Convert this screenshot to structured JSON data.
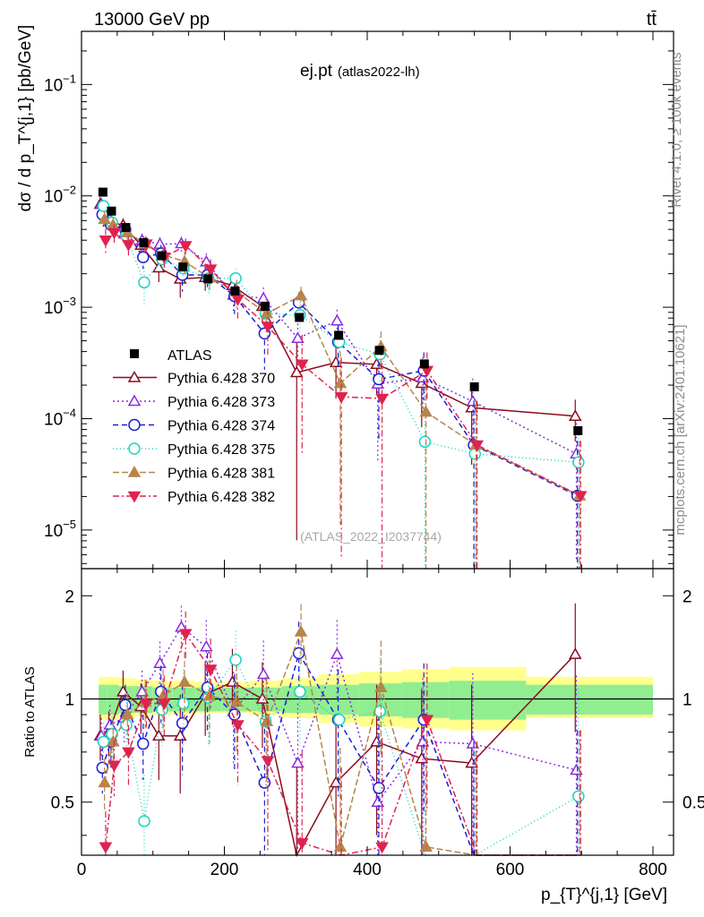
{
  "header": {
    "energy_label": "13000 GeV pp",
    "process_label": "tt̄",
    "plot_title": "ej.pt",
    "plot_tag": "(atlas2022-lh)",
    "rivet_label": "Rivet 4.1.0, ≥ 100k events",
    "mcplots_label": "mcplots.cern.ch [arXiv:2401.10621]",
    "analysis_watermark": "(ATLAS_2022_I2037744)"
  },
  "axes": {
    "ylabel_main": "dσ / d p_T^{j,1} [pb/GeV]",
    "ylabel_ratio": "Ratio to ATLAS",
    "xlabel": "p_{T}^{j,1} [GeV]",
    "x_ticks": [
      "0",
      "200",
      "400",
      "600",
      "800"
    ],
    "y_main_ticks": [
      "10^{-1}",
      "10^{-2}",
      "10^{-3}",
      "10^{-4}",
      "10^{-5}"
    ],
    "y_ratio_ticks": [
      "0.5",
      "1",
      "2"
    ]
  },
  "colors": {
    "data": "#000000",
    "s370": "#8b0a1c",
    "s373": "#8a2be2",
    "s374": "#1c1cd6",
    "s375": "#19d4c4",
    "s381": "#b8844a",
    "s382": "#e0224e",
    "band_inner": "#90ee90",
    "band_outer": "#ffff8c"
  },
  "chart_data": {
    "type": "scatter",
    "title": "ej.pt (atlas2022-lh)",
    "xlabel": "p_T^{j,1} [GeV]",
    "ylabel": "dσ / d p_T^{j,1} [pb/GeV]",
    "xlim": [
      0,
      800
    ],
    "ylim_main": [
      4.5e-06,
      0.3
    ],
    "ylim_ratio": [
      0.35,
      2.4
    ],
    "yscale": "log",
    "legend_position": "center-left",
    "x": [
      30,
      42,
      62,
      87,
      112,
      142,
      177,
      215,
      257,
      305,
      360,
      417,
      480,
      550,
      695
    ],
    "data": {
      "name": "ATLAS",
      "values": [
        0.0108,
        0.0073,
        0.0052,
        0.0038,
        0.0029,
        0.0023,
        0.0018,
        0.0014,
        0.00102,
        0.00081,
        0.00056,
        0.00041,
        0.00031,
        0.000193,
        7.8e-05
      ],
      "band_inner": [
        [
          0.9,
          1.1
        ],
        [
          0.9,
          1.1
        ],
        [
          0.91,
          1.09
        ],
        [
          0.91,
          1.09
        ],
        [
          0.92,
          1.08
        ],
        [
          0.92,
          1.08
        ],
        [
          0.92,
          1.08
        ],
        [
          0.92,
          1.08
        ],
        [
          0.92,
          1.08
        ],
        [
          0.91,
          1.09
        ],
        [
          0.9,
          1.1
        ],
        [
          0.89,
          1.11
        ],
        [
          0.88,
          1.12
        ],
        [
          0.87,
          1.13
        ],
        [
          0.9,
          1.1
        ]
      ],
      "band_outer": [
        [
          0.87,
          1.16
        ],
        [
          0.87,
          1.16
        ],
        [
          0.88,
          1.15
        ],
        [
          0.89,
          1.14
        ],
        [
          0.9,
          1.13
        ],
        [
          0.9,
          1.13
        ],
        [
          0.91,
          1.12
        ],
        [
          0.91,
          1.12
        ],
        [
          0.9,
          1.13
        ],
        [
          0.88,
          1.15
        ],
        [
          0.85,
          1.18
        ],
        [
          0.83,
          1.2
        ],
        [
          0.82,
          1.22
        ],
        [
          0.81,
          1.24
        ],
        [
          0.88,
          1.16
        ]
      ]
    },
    "series": [
      {
        "name": "Pythia 6.428 370",
        "key": "s370",
        "marker": "triangle-up-open",
        "dash": "",
        "ratio": [
          0.78,
          0.8,
          1.05,
          0.95,
          0.78,
          0.78,
          1.03,
          1.12,
          1.0,
          0.32,
          0.57,
          0.75,
          0.67,
          0.65,
          1.35
        ],
        "err": [
          0.12,
          0.12,
          0.16,
          0.16,
          0.2,
          0.25,
          0.25,
          0.28,
          0.28,
          0.32,
          0.3,
          0.35,
          0.4,
          0.45,
          0.55
        ]
      },
      {
        "name": "Pythia 6.428 373",
        "key": "s373",
        "marker": "triangle-up-open",
        "dash": "2,3",
        "ratio": [
          0.78,
          0.84,
          0.88,
          1.05,
          1.27,
          1.62,
          1.42,
          0.92,
          1.18,
          0.65,
          1.35,
          0.5,
          0.75,
          0.74,
          0.62
        ],
        "err": [
          0.1,
          0.12,
          0.14,
          0.16,
          0.2,
          0.25,
          0.28,
          0.28,
          0.3,
          0.32,
          0.35,
          0.4,
          0.4,
          0.45,
          0.55
        ]
      },
      {
        "name": "Pythia 6.428 374",
        "key": "s374",
        "marker": "circle-open",
        "dash": "6,4",
        "ratio": [
          0.63,
          0.75,
          0.96,
          0.74,
          1.05,
          0.85,
          1.08,
          0.9,
          0.57,
          1.36,
          0.87,
          0.55,
          0.87,
          0.3,
          0.26
        ],
        "err": [
          0.1,
          0.12,
          0.14,
          0.16,
          0.2,
          0.25,
          0.28,
          0.28,
          0.3,
          0.32,
          0.35,
          0.4,
          0.4,
          0.45,
          0.55
        ]
      },
      {
        "name": "Pythia 6.428 375",
        "key": "s375",
        "marker": "circle-open",
        "dash": "1,3",
        "ratio": [
          0.75,
          0.79,
          0.84,
          0.44,
          0.93,
          0.97,
          1.01,
          1.3,
          0.86,
          1.05,
          0.87,
          0.92,
          0.2,
          0.25,
          0.52
        ],
        "err": [
          0.1,
          0.12,
          0.14,
          0.16,
          0.2,
          0.25,
          0.28,
          0.28,
          0.3,
          0.32,
          0.35,
          0.4,
          0.4,
          0.45,
          0.55
        ]
      },
      {
        "name": "Pythia 6.428 381",
        "key": "s381",
        "marker": "triangle-up-filled",
        "dash": "7,3",
        "ratio": [
          0.57,
          0.75,
          0.9,
          0.98,
          1.02,
          1.12,
          1.02,
          0.98,
          0.86,
          1.57,
          0.37,
          1.08,
          0.37,
          0.3,
          0.26
        ],
        "err": [
          0.1,
          0.12,
          0.14,
          0.16,
          0.2,
          0.25,
          0.28,
          0.28,
          0.3,
          0.32,
          0.35,
          0.4,
          0.4,
          0.45,
          0.55
        ]
      },
      {
        "name": "Pythia 6.428 382",
        "key": "s382",
        "marker": "triangle-down-filled",
        "dash": "7,3,2,3",
        "ratio": [
          0.37,
          0.64,
          0.7,
          0.97,
          0.97,
          1.55,
          1.22,
          0.84,
          0.66,
          0.38,
          0.28,
          0.37,
          0.87,
          0.3,
          0.26
        ],
        "err": [
          0.1,
          0.12,
          0.14,
          0.16,
          0.2,
          0.25,
          0.28,
          0.28,
          0.3,
          0.32,
          0.35,
          0.4,
          0.4,
          0.45,
          0.55
        ]
      }
    ]
  }
}
